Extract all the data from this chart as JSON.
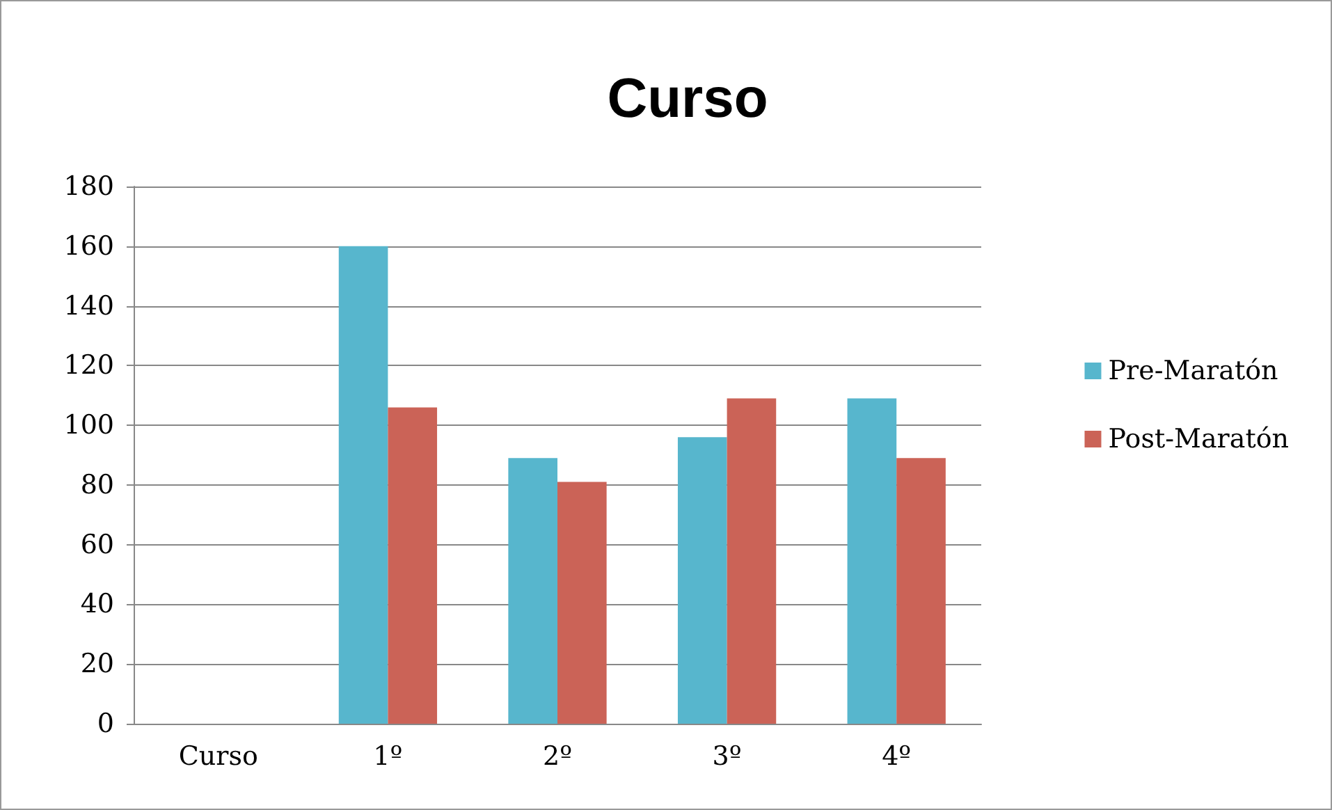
{
  "chart_data": {
    "type": "bar",
    "title": "Curso",
    "categories": [
      "Curso",
      "1º",
      "2º",
      "3º",
      "4º"
    ],
    "series": [
      {
        "name": "Pre-Maratón",
        "color": "#57b6cd",
        "values": [
          null,
          160,
          89,
          96,
          109
        ]
      },
      {
        "name": "Post-Maratón",
        "color": "#cb6357",
        "values": [
          null,
          106,
          81,
          109,
          89
        ]
      }
    ],
    "ylim": [
      0,
      180
    ],
    "yticks": [
      0,
      20,
      40,
      60,
      80,
      100,
      120,
      140,
      160,
      180
    ],
    "grid": "y",
    "legend": "right"
  }
}
